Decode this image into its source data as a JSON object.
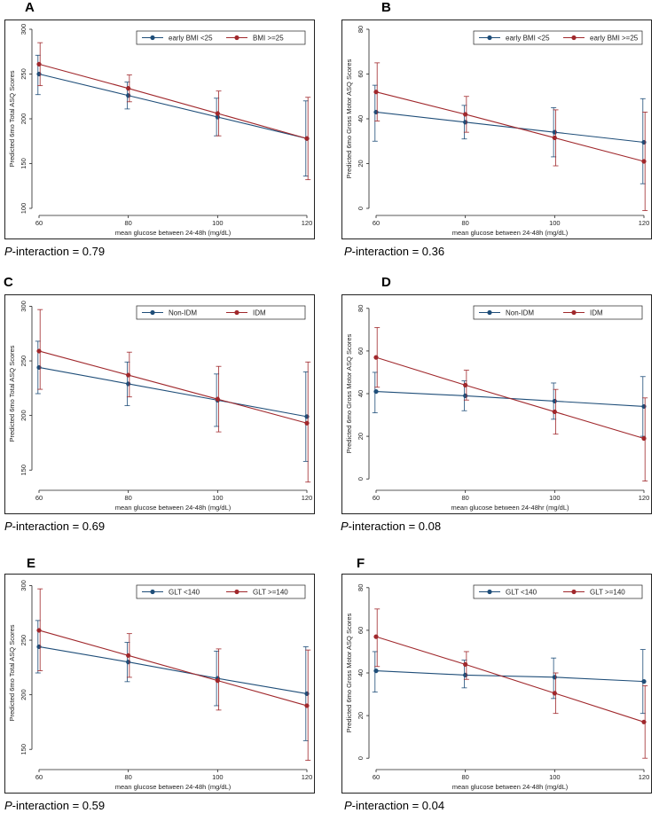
{
  "colors": {
    "blue": "#1f4e79",
    "red": "#a0282c",
    "frame": "#222222"
  },
  "chart_data": [
    {
      "id": "A",
      "type": "line",
      "xlabel": "mean glucose between 24-48h (mg/dL)",
      "ylabel": "Predicted 6mo Total ASQ Scores",
      "x": [
        60,
        80,
        100,
        120
      ],
      "xticks": [
        60,
        80,
        100,
        120
      ],
      "ylim": [
        100,
        300
      ],
      "yticks": [
        100,
        150,
        200,
        250,
        300
      ],
      "legend_position": "top-right",
      "series": [
        {
          "name": "early BMI <25",
          "color": "#1f4e79",
          "values": [
            250,
            226,
            202,
            178
          ],
          "ci_low": [
            227,
            211,
            181,
            136
          ],
          "ci_high": [
            271,
            241,
            223,
            220
          ]
        },
        {
          "name": "BMI >=25",
          "color": "#a0282c",
          "values": [
            261,
            234,
            206,
            178
          ],
          "ci_low": [
            237,
            219,
            181,
            132
          ],
          "ci_high": [
            285,
            249,
            231,
            224
          ]
        }
      ],
      "p_label": "P",
      "p_text": "-interaction = 0.79"
    },
    {
      "id": "B",
      "type": "line",
      "xlabel": "mean glucose between 24-48h (mg/dL)",
      "ylabel": "Predicted 6mo Gross Motor ASQ Scores",
      "x": [
        60,
        80,
        100,
        120
      ],
      "xticks": [
        60,
        80,
        100,
        120
      ],
      "ylim": [
        0,
        80
      ],
      "yticks": [
        0,
        20,
        40,
        60,
        80
      ],
      "legend_position": "top-right",
      "series": [
        {
          "name": "early BMI <25",
          "color": "#1f4e79",
          "values": [
            43,
            38.5,
            34,
            29.5
          ],
          "ci_low": [
            30,
            31,
            23,
            11
          ],
          "ci_high": [
            55,
            46,
            45,
            49
          ]
        },
        {
          "name": "early BMI >=25",
          "color": "#a0282c",
          "values": [
            52,
            42,
            31.5,
            21
          ],
          "ci_low": [
            39,
            34,
            19,
            -1
          ],
          "ci_high": [
            65,
            50,
            44,
            43
          ]
        }
      ],
      "p_label": "P",
      "p_text": "-interaction = 0.36"
    },
    {
      "id": "C",
      "type": "line",
      "xlabel": "mean glucose between 24-48h (mg/dL)",
      "ylabel": "Predicted 6mo Total ASQ Scores",
      "x": [
        60,
        80,
        100,
        120
      ],
      "xticks": [
        60,
        80,
        100,
        120
      ],
      "ylim": [
        138,
        302
      ],
      "yticks": [
        150,
        200,
        250,
        300
      ],
      "legend_position": "top-right",
      "series": [
        {
          "name": "Non-IDM",
          "color": "#1f4e79",
          "values": [
            244,
            229,
            214,
            199
          ],
          "ci_low": [
            220,
            209,
            190,
            158
          ],
          "ci_high": [
            268,
            249,
            238,
            240
          ]
        },
        {
          "name": "IDM",
          "color": "#a0282c",
          "values": [
            259,
            237,
            215,
            193
          ],
          "ci_low": [
            224,
            217,
            185,
            139
          ],
          "ci_high": [
            297,
            258,
            245,
            249
          ]
        }
      ],
      "p_label": "P",
      "p_text": "-interaction = 0.69"
    },
    {
      "id": "D",
      "type": "line",
      "xlabel": "mean glucose between 24-48hr (mg/dL)",
      "ylabel": "Predicted 6mo Gross Motor ASQ Scores",
      "x": [
        60,
        80,
        100,
        120
      ],
      "xticks": [
        60,
        80,
        100,
        120
      ],
      "ylim": [
        -2,
        82
      ],
      "yticks": [
        0,
        20,
        40,
        60,
        80
      ],
      "legend_position": "top-right",
      "series": [
        {
          "name": "Non-IDM",
          "color": "#1f4e79",
          "values": [
            41,
            39,
            36.5,
            34
          ],
          "ci_low": [
            31,
            32,
            28,
            20
          ],
          "ci_high": [
            50,
            46,
            45,
            48
          ]
        },
        {
          "name": "IDM",
          "color": "#a0282c",
          "values": [
            57,
            44,
            31.5,
            19
          ],
          "ci_low": [
            43,
            37,
            21,
            -1
          ],
          "ci_high": [
            71,
            51,
            42,
            38
          ]
        }
      ],
      "p_label": "P",
      "p_text": "-interaction = 0.08"
    },
    {
      "id": "E",
      "type": "line",
      "xlabel": "mean glucose between 24-48h (mg/dL)",
      "ylabel": "Predicted 6mo Total ASQ Scores",
      "x": [
        60,
        80,
        100,
        120
      ],
      "xticks": [
        60,
        80,
        100,
        120
      ],
      "ylim": [
        138,
        302
      ],
      "yticks": [
        150,
        200,
        250,
        300
      ],
      "legend_position": "top-right",
      "series": [
        {
          "name": "GLT <140",
          "color": "#1f4e79",
          "values": [
            244,
            230,
            215,
            201
          ],
          "ci_low": [
            220,
            212,
            190,
            158
          ],
          "ci_high": [
            268,
            248,
            240,
            244
          ]
        },
        {
          "name": "GLT >=140",
          "color": "#a0282c",
          "values": [
            259,
            236,
            213,
            190
          ],
          "ci_low": [
            222,
            216,
            186,
            140
          ],
          "ci_high": [
            297,
            256,
            242,
            241
          ]
        }
      ],
      "p_label": "P",
      "p_text": "-interaction = 0.59"
    },
    {
      "id": "F",
      "type": "line",
      "xlabel": "mean glucose between 24-48h (mg/dL)",
      "ylabel": "Predicted 6mo Gross Motor ASQ Scores",
      "x": [
        60,
        80,
        100,
        120
      ],
      "xticks": [
        60,
        80,
        100,
        120
      ],
      "ylim": [
        -2,
        82
      ],
      "yticks": [
        0,
        20,
        40,
        60,
        80
      ],
      "legend_position": "top-right",
      "series": [
        {
          "name": "GLT <140",
          "color": "#1f4e79",
          "values": [
            41,
            39,
            38,
            36
          ],
          "ci_low": [
            31,
            33,
            28,
            21
          ],
          "ci_high": [
            50,
            46,
            47,
            51
          ]
        },
        {
          "name": "GLT >=140",
          "color": "#a0282c",
          "values": [
            57,
            44,
            30.5,
            17
          ],
          "ci_low": [
            43,
            37,
            21,
            0
          ],
          "ci_high": [
            70,
            50,
            40,
            34
          ]
        }
      ],
      "p_label": "P",
      "p_text": "-interaction = 0.04"
    }
  ]
}
